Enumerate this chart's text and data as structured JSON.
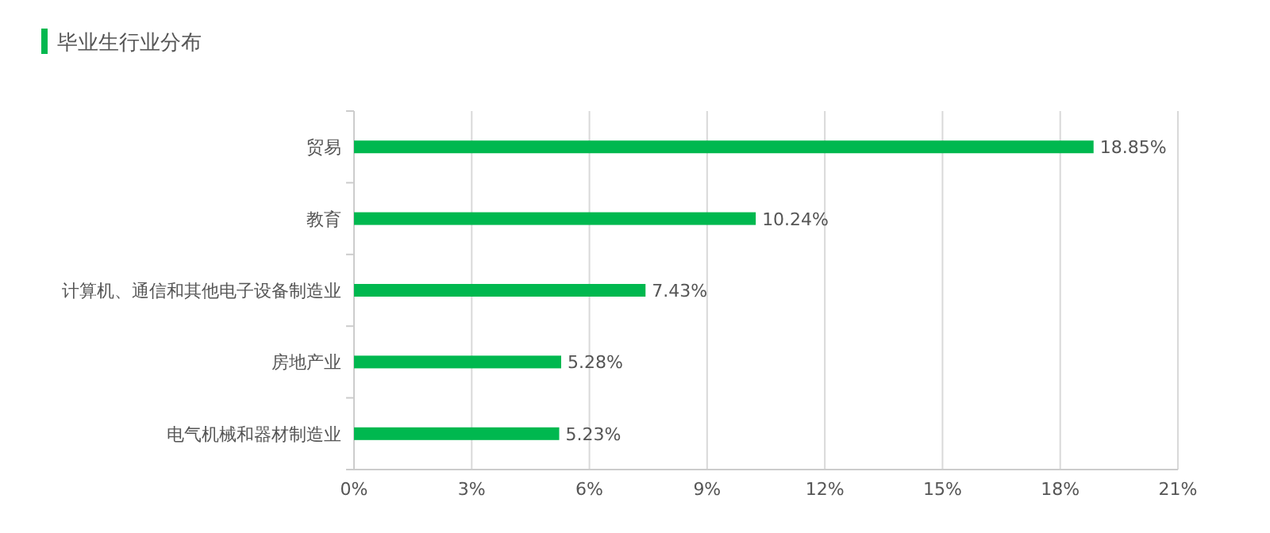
{
  "chart_data": {
    "type": "bar",
    "orientation": "horizontal",
    "title": "毕业生行业分布",
    "categories": [
      "贸易",
      "教育",
      "计算机、通信和其他电子设备制造业",
      "房地产业",
      "电气机械和器材制造业"
    ],
    "values": [
      18.85,
      10.24,
      7.43,
      5.28,
      5.23
    ],
    "value_labels": [
      "18.85%",
      "10.24%",
      "7.43%",
      "5.28%",
      "5.23%"
    ],
    "color": "#00b84f",
    "xlim": [
      0,
      21
    ],
    "xticks": [
      {
        "value": 0,
        "label": "0%"
      },
      {
        "value": 3,
        "label": "3%"
      },
      {
        "value": 6,
        "label": "6%"
      },
      {
        "value": 9,
        "label": "9%"
      },
      {
        "value": 12,
        "label": "12%"
      },
      {
        "value": 15,
        "label": "15%"
      },
      {
        "value": 18,
        "label": "18%"
      },
      {
        "value": 21,
        "label": "21%"
      }
    ],
    "grid": "x"
  }
}
